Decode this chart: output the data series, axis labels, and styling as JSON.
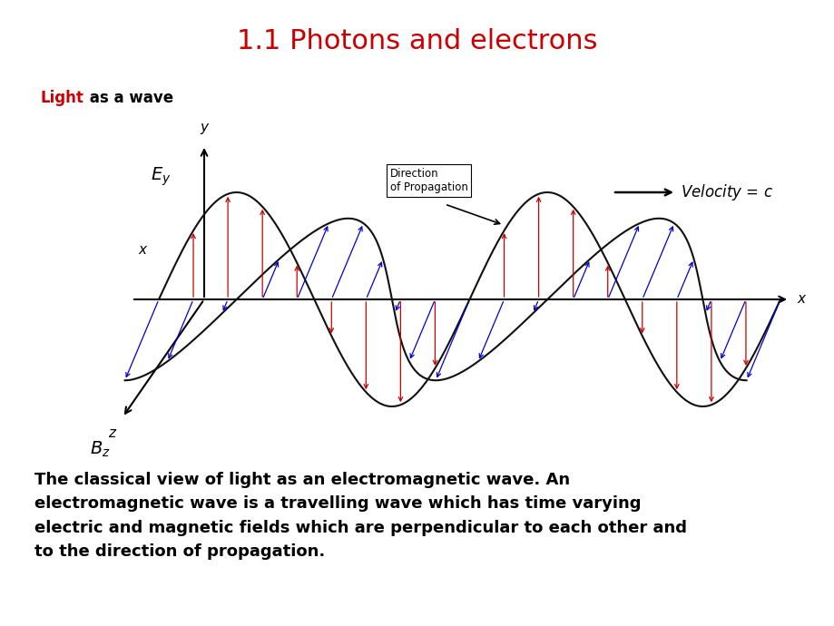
{
  "title": "1.1 Photons and electrons",
  "title_color": "#CC0000",
  "title_fontsize": 22,
  "light_label": "Light",
  "light_label_color": "#CC0000",
  "wave_label": " as a wave",
  "body_text": "The classical view of light as an electromagnetic wave. An\nelectromagnetic wave is a travelling wave which has time varying\nelectric and magnetic fields which are perpendicular to each other and\nto the direction of propagation.",
  "body_fontsize": 13,
  "bg_color": "#ffffff",
  "electric_color": "#CC0000",
  "magnetic_color": "#0000CC",
  "axis_color": "#000000",
  "wave_color": "#111111"
}
